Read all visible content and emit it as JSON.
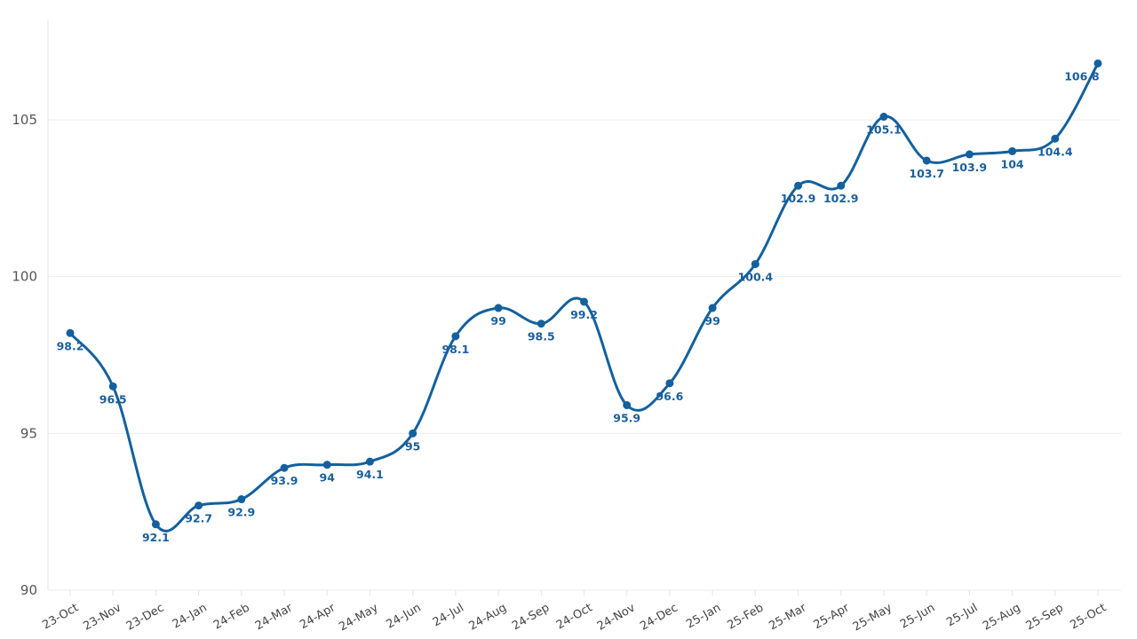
{
  "chart_data": {
    "type": "line",
    "categories": [
      "23-Oct",
      "23-Nov",
      "23-Dec",
      "24-Jan",
      "24-Feb",
      "24-Mar",
      "24-Apr",
      "24-May",
      "24-Jun",
      "24-Jul",
      "24-Aug",
      "24-Sep",
      "24-Oct",
      "24-Nov",
      "24-Dec",
      "25-Jan",
      "25-Feb",
      "25-Mar",
      "25-Apr",
      "25-May",
      "25-Jun",
      "25-Jul",
      "25-Aug",
      "25-Sep",
      "25-Oct"
    ],
    "values": [
      98.2,
      96.5,
      92.1,
      92.7,
      92.9,
      93.9,
      94,
      94.1,
      95,
      98.1,
      99,
      98.5,
      99.2,
      95.9,
      96.6,
      99,
      100.4,
      102.9,
      102.9,
      105.1,
      103.7,
      103.9,
      104,
      104.4,
      106.8
    ],
    "ylim": [
      90,
      108.2
    ],
    "yticks": [
      90,
      95,
      100,
      105
    ],
    "grid": "horizontal",
    "line_color": "#14609e",
    "smooth": true,
    "data_labels": true
  }
}
